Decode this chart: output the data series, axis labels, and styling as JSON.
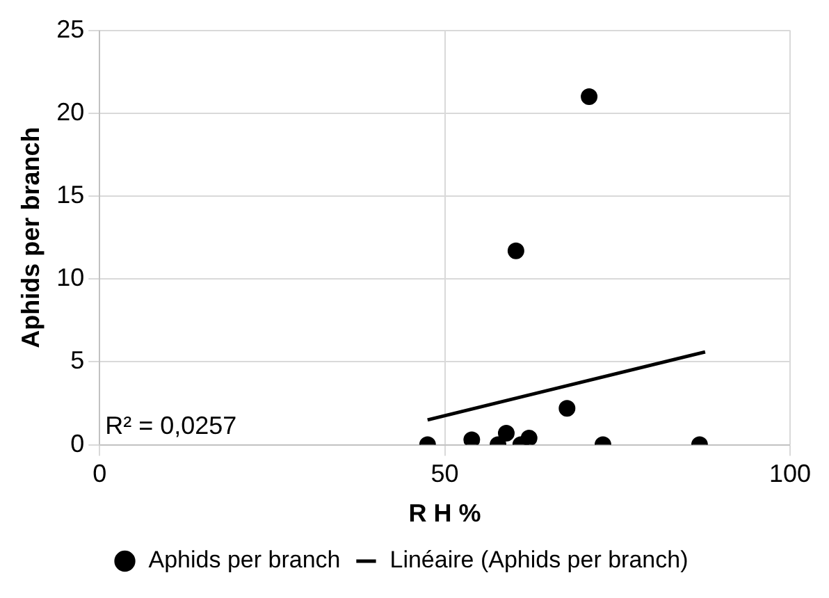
{
  "chart_data": {
    "type": "scatter",
    "xlabel": "R H %",
    "ylabel": "Aphids per branch",
    "xlim": [
      0,
      100
    ],
    "xticks": [
      0,
      50,
      100
    ],
    "ylim": [
      0,
      25
    ],
    "yticks": [
      0,
      5,
      10,
      15,
      20,
      25
    ],
    "grid": true,
    "legend": "bottom",
    "annotations": [
      "R² = 0,0257"
    ],
    "series": [
      {
        "name": "Aphids per branch",
        "type": "scatter",
        "marker": "circle",
        "color": "#000000",
        "x": [
          47.5,
          53.9,
          57.7,
          58.9,
          61.0,
          62.2,
          67.7,
          60.3,
          70.9,
          72.9,
          86.9
        ],
        "values": [
          0,
          0.3,
          0,
          0.7,
          0,
          0.4,
          2.2,
          11.7,
          21.0,
          0,
          0
        ]
      },
      {
        "name": "Linéaire (Aphids per branch)",
        "type": "line",
        "marker": "none",
        "color": "#000000",
        "line_style": "solid",
        "x": [
          47.5,
          87.7
        ],
        "values": [
          1.5,
          5.6
        ]
      }
    ]
  }
}
